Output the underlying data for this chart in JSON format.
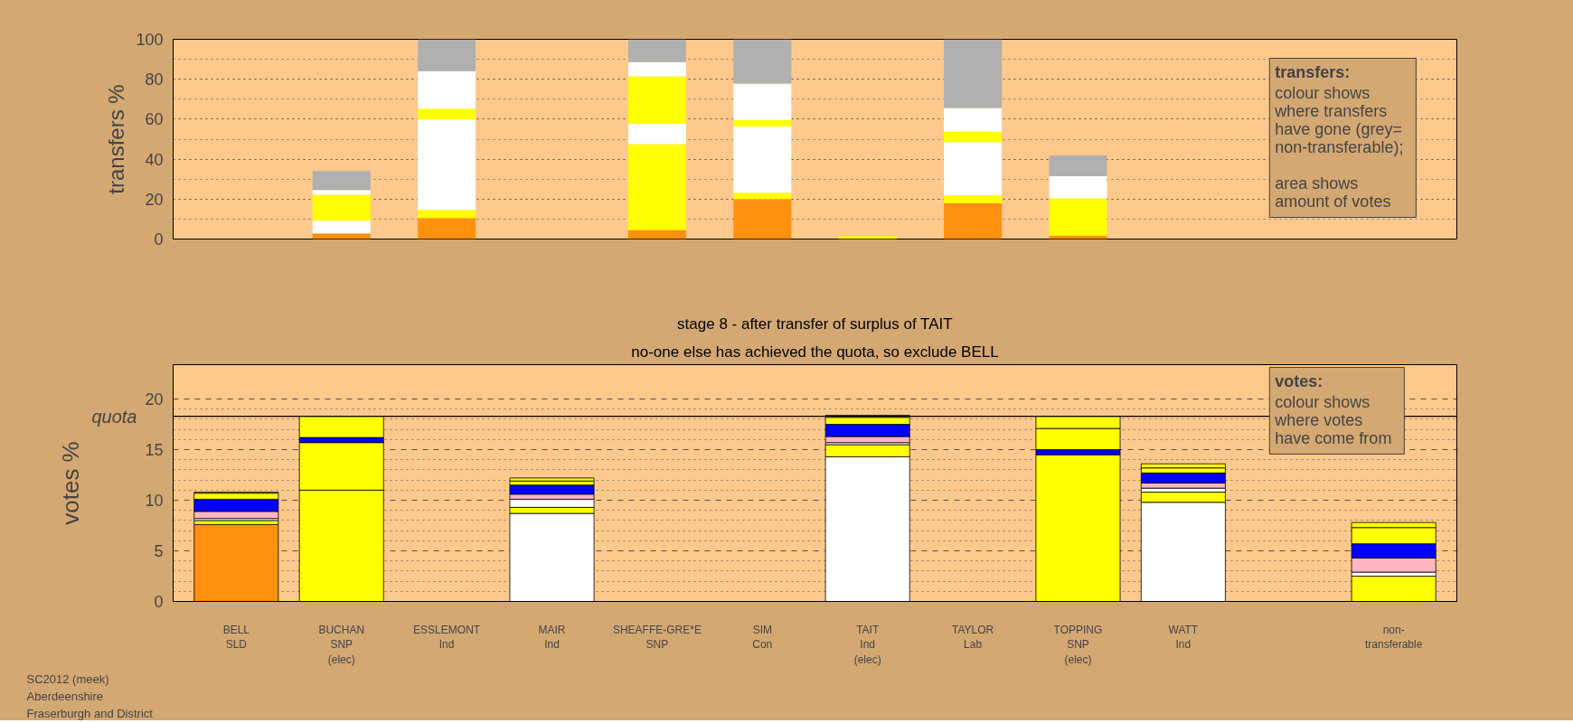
{
  "chart_data": [
    {
      "type": "bar",
      "stacked": true,
      "ylabel": "transfers %",
      "ylim": [
        0,
        100
      ],
      "yticks": [
        0,
        20,
        40,
        60,
        80,
        100
      ],
      "grid": "y",
      "tick_labels": "y",
      "categories": [
        null,
        null,
        null,
        null,
        null,
        null,
        null,
        null,
        null,
        null,
        null,
        null
      ],
      "annotations": [
        "transfers:",
        "colour shows\nwhere transfers\nhave gone (grey=\nnon-transferable);\n\narea shows\namount of votes"
      ],
      "series": [
        {
          "color": "#ff9010",
          "values": [
            null,
            2.8,
            10.5,
            null,
            4.5,
            20.0,
            null,
            17.9,
            1.7,
            null,
            null,
            null
          ]
        },
        {
          "color": "#ffff00",
          "values": [
            null,
            null,
            4.1,
            null,
            43.0,
            3.2,
            1.5,
            4.0,
            18.7,
            null,
            null,
            null
          ]
        },
        {
          "color": "#ffffff",
          "values": [
            null,
            6.4,
            45.4,
            null,
            10.3,
            33.1,
            null,
            26.6,
            11.1,
            null,
            null,
            null
          ]
        },
        {
          "color": "#ffff00",
          "values": [
            null,
            13.0,
            5.3,
            null,
            23.7,
            3.3,
            null,
            5.2,
            null,
            null,
            null,
            null
          ]
        },
        {
          "color": "#ffffff",
          "values": [
            null,
            2.4,
            18.7,
            null,
            7.1,
            18.2,
            null,
            11.9,
            null,
            null,
            null,
            null
          ]
        },
        {
          "color": "#b0b0b0",
          "values": [
            null,
            9.4,
            16.0,
            null,
            11.4,
            22.2,
            null,
            34.4,
            10.4,
            null,
            null,
            null
          ]
        }
      ]
    },
    {
      "type": "bar",
      "stacked": true,
      "title": "stage 8 - after transfer of surplus of TAIT",
      "subtitle": "no-one else has achieved the quota, so exclude BELL",
      "ylabel": "votes %",
      "ylim": [
        0,
        23.4
      ],
      "yticks": [
        0,
        5,
        10,
        15,
        20
      ],
      "grid": "y",
      "categories": [
        "BELL\nSLD",
        "BUCHAN\nSNP\n(elec)",
        "ESSLEMONT\nInd",
        "MAIR\nInd",
        "SHEAFFE-GRE*E\nSNP",
        "SIM\nCon",
        "TAIT\nInd\n(elec)",
        "TAYLOR\nLab",
        "TOPPING\nSNP\n(elec)",
        "WATT\nInd",
        null,
        "non-\ntransferable"
      ],
      "ref_lines": [
        {
          "axis": "y",
          "value": 18.3,
          "label": "quota"
        }
      ],
      "annotations": [
        "votes:",
        "colour shows\nwhere votes\nhave come from",
        "SC2012 (meek)",
        "Aberdeenshire",
        "Fraserburgh and District"
      ],
      "series": [
        {
          "colors": [
            "#ff9010",
            "#ffff00",
            null,
            "#ffffff",
            null,
            null,
            "#ffffff",
            null,
            "#ffff00",
            "#ffffff",
            null,
            null
          ],
          "values": [
            7.6,
            11.0,
            null,
            8.7,
            null,
            null,
            14.3,
            null,
            14.5,
            9.8,
            null,
            null
          ]
        },
        {
          "color": "#ffff00",
          "values": [
            0.4,
            4.7,
            null,
            0.6,
            null,
            null,
            1.2,
            null,
            null,
            1.0,
            null,
            2.5
          ]
        },
        {
          "color": "#ffffff",
          "values": [
            0.2,
            null,
            null,
            0.8,
            null,
            null,
            0.2,
            null,
            null,
            0.4,
            null,
            0.4
          ]
        },
        {
          "color": "#ffb6c1",
          "values": [
            0.7,
            null,
            null,
            0.5,
            null,
            null,
            0.6,
            null,
            null,
            0.5,
            null,
            1.4
          ]
        },
        {
          "color": "#0000ff",
          "values": [
            1.2,
            0.5,
            null,
            0.9,
            null,
            null,
            1.2,
            null,
            0.5,
            1.0,
            null,
            1.4
          ]
        },
        {
          "color": "#ffff00",
          "values": [
            0.6,
            2.1,
            null,
            0.4,
            null,
            null,
            0.7,
            null,
            2.1,
            0.5,
            null,
            1.6
          ]
        },
        {
          "color": "#ffff00",
          "values": [
            0.1,
            null,
            null,
            0.3,
            null,
            null,
            0.2,
            null,
            1.2,
            0.4,
            null,
            0.5
          ]
        }
      ]
    }
  ]
}
